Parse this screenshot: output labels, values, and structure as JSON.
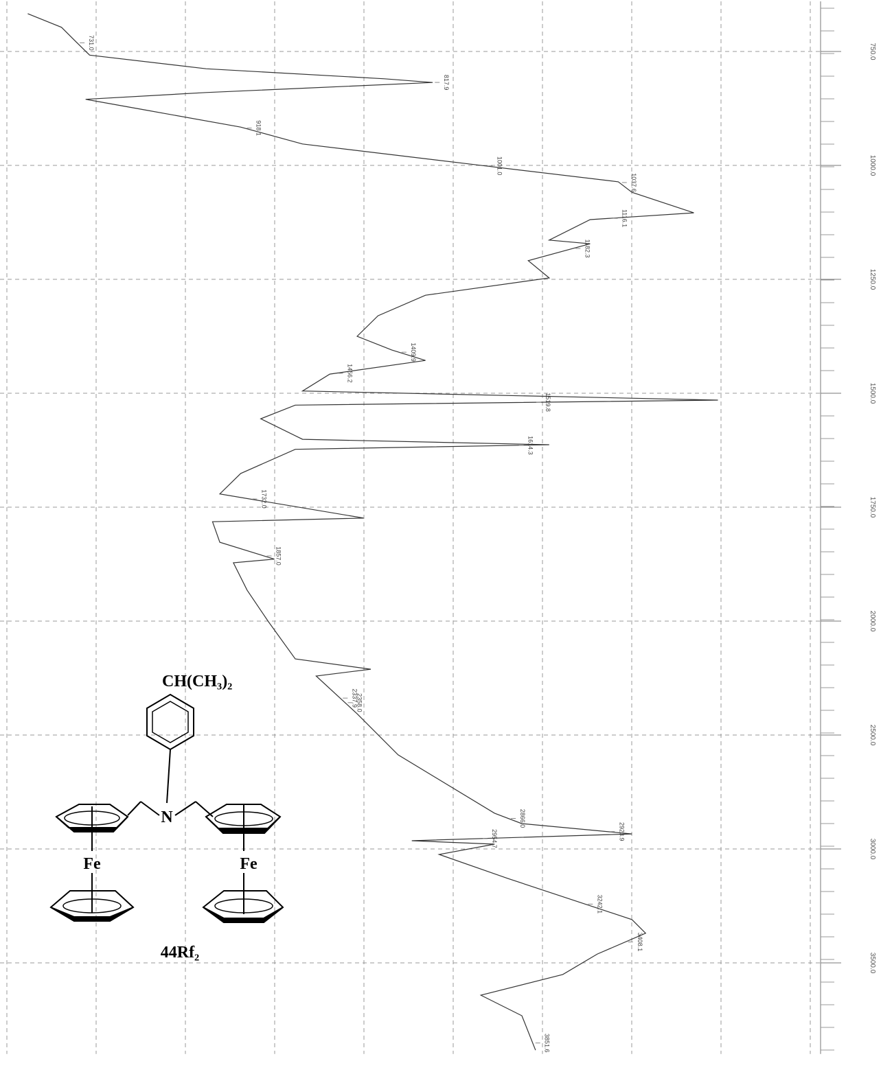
{
  "chart_data": {
    "type": "line",
    "color": "#333333",
    "x": [
      667,
      697,
      727,
      758,
      788,
      810,
      818,
      840,
      855,
      878,
      916,
      953,
      998,
      1036,
      1059,
      1104,
      1119,
      1164,
      1172,
      1209,
      1247,
      1285,
      1330,
      1375,
      1405,
      1428,
      1458,
      1495,
      1515,
      1526,
      1556,
      1601,
      1613,
      1623,
      1676,
      1721,
      1774,
      1782,
      1827,
      1864,
      1872,
      1932,
      2000,
      2166,
      2211,
      2241,
      2407,
      2587,
      2843,
      2889,
      2934,
      2964,
      2979,
      3024,
      3130,
      3310,
      3370,
      3461,
      3551,
      3642,
      3732,
      3883
    ],
    "values": [
      2.6,
      6.8,
      8.5,
      10.3,
      24.8,
      47,
      53,
      24.8,
      9.8,
      17.1,
      29.1,
      36.8,
      58.1,
      76.1,
      77.8,
      85.5,
      72.6,
      67.5,
      72.6,
      64.9,
      67.5,
      52.1,
      46.2,
      43.6,
      47.9,
      52.1,
      40.2,
      36.8,
      88.5,
      35.9,
      31.6,
      36.8,
      67.5,
      35.9,
      29.1,
      26.5,
      44.4,
      25.6,
      26.5,
      33.3,
      28.2,
      29.9,
      32.5,
      35.9,
      45.3,
      38.5,
      43.6,
      48.7,
      60.7,
      64.1,
      77.8,
      50.4,
      60.7,
      53.8,
      62.4,
      77.8,
      79.5,
      73.5,
      69.2,
      59,
      64.1,
      65.8
    ],
    "xlim": [
      640,
      3900
    ],
    "xticks": [
      {
        "value": 750,
        "label": "750.0"
      },
      {
        "value": 1000,
        "label": "1000.0"
      },
      {
        "value": 1250,
        "label": "1250.0"
      },
      {
        "value": 1500,
        "label": "1500.0"
      },
      {
        "value": 1750,
        "label": "1750.0"
      },
      {
        "value": 2000,
        "label": "2000.0"
      },
      {
        "value": 2500,
        "label": "2500.0"
      },
      {
        "value": 3000,
        "label": "3000.0"
      },
      {
        "value": 3500,
        "label": "3500.0"
      }
    ],
    "ylim": [
      0,
      100
    ],
    "grid": true,
    "peaks": {
      "values": [
        731.0,
        817.9,
        918.1,
        1001.0,
        1037.6,
        1116.1,
        1182.3,
        1409.9,
        1456.2,
        1519.8,
        1614.3,
        1732.0,
        1857.0,
        2337.9,
        2358.0,
        2866.0,
        2923.9,
        2954.7,
        3242.1,
        3408.1,
        3851.6
      ],
      "value_labels": [
        "731.0",
        "817.9",
        "918.1",
        "1001.0",
        "1037.6",
        "1116.1",
        "1182.3",
        "1409.9",
        "1456.2",
        "1519.8",
        "1614.3",
        "1732.0",
        "1857.0",
        "2337.9",
        "2358.0",
        "2866.0",
        "2923.9",
        "2954.7",
        "3242.1",
        "3408.1",
        "3851.6"
      ]
    }
  },
  "structure": {
    "substituent": "CH(CH₃)₂",
    "amine": "N",
    "metal_left": "Fe",
    "metal_right": "Fe",
    "compound": "44Rf₂"
  }
}
